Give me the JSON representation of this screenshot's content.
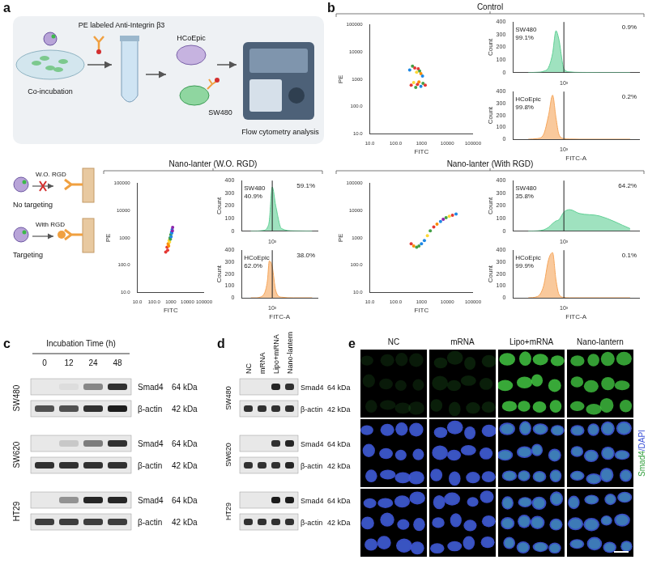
{
  "figure": {
    "panel_labels": [
      "a",
      "b",
      "c",
      "d",
      "e"
    ],
    "panel_a": {
      "steps": [
        "Co-incubation",
        "PE labeled Anti-Integrin β3",
        "HCoEpic",
        "SW480",
        "Flow cytometry analysis"
      ],
      "conditions": [
        {
          "title": "W.O. RGD",
          "result": "No targeting"
        },
        {
          "title": "With RGD",
          "result": "Targeting"
        }
      ]
    },
    "panel_b": {
      "groups": [
        "Control",
        "Nano-lanter (W.O. RGD)",
        "Nano-lanter (With RGD)"
      ]
    },
    "panel_c": {
      "title": "Incubation Time (h)",
      "lanes": [
        "0",
        "12",
        "24",
        "48"
      ],
      "rows": [
        {
          "cell": "SW480",
          "bands": [
            {
              "protein": "Smad4",
              "size": "64 kDa",
              "intensity": [
                0,
                0.05,
                0.45,
                0.85
              ]
            },
            {
              "protein": "β-actin",
              "size": "42 kDa",
              "intensity": [
                0.7,
                0.7,
                0.85,
                0.95
              ]
            }
          ]
        },
        {
          "cell": "SW620",
          "bands": [
            {
              "protein": "Smad4",
              "size": "64 kDa",
              "intensity": [
                0,
                0.15,
                0.5,
                0.85
              ]
            },
            {
              "protein": "β-actin",
              "size": "42 kDa",
              "intensity": [
                0.85,
                0.85,
                0.85,
                0.85
              ]
            }
          ]
        },
        {
          "cell": "HT29",
          "bands": [
            {
              "protein": "Smad4",
              "size": "64 kDa",
              "intensity": [
                0,
                0.4,
                0.9,
                0.9
              ]
            },
            {
              "protein": "β-actin",
              "size": "42 kDa",
              "intensity": [
                0.8,
                0.8,
                0.8,
                0.8
              ]
            }
          ]
        }
      ]
    },
    "panel_d": {
      "lanes": [
        "NC",
        "mRNA",
        "Lipo+mRNA",
        "Nano-lantern"
      ],
      "rows": [
        {
          "cell": "SW480",
          "bands": [
            {
              "protein": "Smad4",
              "size": "64 kDa",
              "intensity": [
                0,
                0,
                0.9,
                0.85
              ]
            },
            {
              "protein": "β-actin",
              "size": "42 kDa",
              "intensity": [
                0.85,
                0.85,
                0.85,
                0.85
              ]
            }
          ]
        },
        {
          "cell": "SW620",
          "bands": [
            {
              "protein": "Smad4",
              "size": "64 kDa",
              "intensity": [
                0,
                0,
                0.85,
                0.9
              ]
            },
            {
              "protein": "β-actin",
              "size": "42 kDa",
              "intensity": [
                0.85,
                0.85,
                0.85,
                0.9
              ]
            }
          ]
        },
        {
          "cell": "HT29",
          "bands": [
            {
              "protein": "Smad4",
              "size": "64 kDa",
              "intensity": [
                0,
                0,
                0.95,
                0.95
              ]
            },
            {
              "protein": "β-actin",
              "size": "42 kDa",
              "intensity": [
                0.85,
                0.85,
                0.85,
                0.85
              ]
            }
          ]
        }
      ]
    },
    "panel_e": {
      "columns": [
        "NC",
        "mRNA",
        "Lipo+mRNA",
        "Nano-lantern"
      ],
      "stain": "Smad4/DAPI",
      "smad4_intensity": [
        0.12,
        0.15,
        0.8,
        0.75
      ]
    }
  },
  "chart_data": [
    {
      "type": "scatter",
      "log": true,
      "x_label": "FITC",
      "y_label": "PE",
      "x": [
        350,
        450,
        550,
        650,
        750,
        850,
        950,
        1100,
        400,
        500,
        600,
        700,
        800,
        950,
        1150,
        1400
      ],
      "values": [
        2200,
        3000,
        2600,
        1800,
        2400,
        2000,
        1600,
        1300,
        600,
        750,
        500,
        650,
        800,
        550,
        700,
        600
      ],
      "colors": [
        "#1e88e5",
        "#43a047",
        "#e53935",
        "#fdd835",
        "#e53935",
        "#43a047",
        "#fb8c00",
        "#1e88e5",
        "#e53935",
        "#fdd835",
        "#43a047",
        "#e53935",
        "#fb8c00",
        "#1e88e5",
        "#43a047",
        "#e53935"
      ],
      "xlim": [
        10,
        100000
      ],
      "ylim": [
        10,
        100000
      ],
      "xticks": [
        {
          "value": 10,
          "label": "10.0"
        },
        {
          "value": 100,
          "label": "100.0"
        },
        1000,
        10000,
        100000
      ],
      "yticks": [
        {
          "value": 10,
          "label": "10.0"
        },
        {
          "value": 100,
          "label": "100.0"
        },
        1000,
        10000,
        100000
      ]
    },
    {
      "type": "line",
      "log": "x",
      "y_label": "Count",
      "gate": 1000,
      "x": [
        200,
        300,
        400,
        500,
        600,
        700,
        800,
        1000,
        1300,
        2000,
        5000,
        20000
      ],
      "series": [
        {
          "name": "SW480",
          "color": "#5fcf94",
          "values": [
            0,
            2,
            10,
            40,
            150,
            330,
            260,
            30,
            5,
            1,
            0,
            0
          ]
        }
      ],
      "annotations": [
        "99.1%",
        "0.9%"
      ],
      "xlim": [
        100,
        30000
      ],
      "ylim": [
        0,
        400
      ],
      "xticks": [
        {
          "value": 1000,
          "label": "10³"
        }
      ],
      "yticks": [
        0,
        100,
        200,
        300,
        400
      ]
    },
    {
      "type": "line",
      "log": "x",
      "y_label": "Count",
      "x_label": "FITC-A",
      "gate": 1000,
      "x": [
        200,
        300,
        400,
        500,
        600,
        700,
        800,
        1000,
        1300,
        2000,
        5000,
        20000
      ],
      "series": [
        {
          "name": "HCoEpic",
          "color": "#f5a55a",
          "values": [
            0,
            5,
            40,
            200,
            370,
            180,
            40,
            5,
            1,
            0,
            0,
            0
          ]
        }
      ],
      "annotations": [
        "99.8%",
        "0.2%"
      ],
      "xlim": [
        100,
        30000
      ],
      "ylim": [
        0,
        400
      ],
      "xticks": [
        {
          "value": 1000,
          "label": "10³"
        }
      ],
      "yticks": [
        0,
        100,
        200,
        300,
        400
      ]
    },
    {
      "type": "scatter",
      "log": true,
      "x_label": "FITC",
      "y_label": "PE",
      "x": [
        500,
        600,
        700,
        800,
        900,
        1000,
        1100,
        1200,
        1300,
        650,
        750,
        850,
        950,
        1050,
        1150,
        1250
      ],
      "values": [
        300,
        450,
        600,
        800,
        1000,
        1300,
        1600,
        2000,
        2400,
        350,
        500,
        700,
        900,
        1100,
        1500,
        1800
      ],
      "colors": [
        "#e53935",
        "#e53935",
        "#fb8c00",
        "#fdd835",
        "#43a047",
        "#43a047",
        "#1e88e5",
        "#1e88e5",
        "#8e24aa",
        "#e53935",
        "#fb8c00",
        "#fdd835",
        "#43a047",
        "#1e88e5",
        "#1e88e5",
        "#8e24aa"
      ],
      "xlim": [
        10,
        100000
      ],
      "ylim": [
        10,
        100000
      ],
      "xticks": [
        {
          "value": 10,
          "label": "10.0"
        },
        {
          "value": 100,
          "label": "100.0"
        },
        1000,
        10000,
        100000
      ],
      "yticks": [
        {
          "value": 10,
          "label": "10.0"
        },
        {
          "value": 100,
          "label": "100.0"
        },
        1000,
        10000,
        100000
      ]
    },
    {
      "type": "line",
      "log": "x",
      "y_label": "Count",
      "gate": 1000,
      "x": [
        200,
        300,
        400,
        500,
        600,
        700,
        800,
        1000,
        1300,
        2000,
        5000,
        20000
      ],
      "series": [
        {
          "name": "SW480",
          "color": "#5fcf94",
          "values": [
            0,
            0,
            2,
            5,
            10,
            30,
            80,
            350,
            200,
            20,
            2,
            0
          ]
        }
      ],
      "annotations": [
        "40.9%",
        "59.1%"
      ],
      "xlim": [
        100,
        30000
      ],
      "ylim": [
        0,
        400
      ],
      "xticks": [
        {
          "value": 1000,
          "label": "10³"
        }
      ],
      "yticks": [
        0,
        100,
        200,
        300,
        400
      ]
    },
    {
      "type": "line",
      "log": "x",
      "y_label": "Count",
      "x_label": "FITC-A",
      "gate": 1000,
      "x": [
        200,
        300,
        400,
        500,
        600,
        700,
        800,
        1000,
        1300,
        2000,
        5000,
        20000
      ],
      "series": [
        {
          "name": "HCoEpic",
          "color": "#f5a55a",
          "values": [
            0,
            0,
            5,
            20,
            60,
            150,
            310,
            260,
            60,
            5,
            0,
            0
          ]
        }
      ],
      "annotations": [
        "62.0%",
        "38.0%"
      ],
      "xlim": [
        100,
        30000
      ],
      "ylim": [
        0,
        400
      ],
      "xticks": [
        {
          "value": 1000,
          "label": "10³"
        }
      ],
      "yticks": [
        0,
        100,
        200,
        300,
        400
      ]
    },
    {
      "type": "scatter",
      "log": true,
      "x_label": "FITC",
      "y_label": "PE",
      "x": [
        400,
        500,
        650,
        800,
        1000,
        1300,
        1700,
        2200,
        3000,
        4000,
        5500,
        7000,
        9000,
        12000,
        16000,
        22000
      ],
      "values": [
        600,
        500,
        450,
        500,
        600,
        800,
        1200,
        1800,
        2500,
        3200,
        4000,
        4800,
        5500,
        6200,
        6800,
        7500
      ],
      "colors": [
        "#e53935",
        "#fb8c00",
        "#43a047",
        "#43a047",
        "#1e88e5",
        "#1e88e5",
        "#fdd835",
        "#43a047",
        "#e53935",
        "#fb8c00",
        "#1e88e5",
        "#8e24aa",
        "#43a047",
        "#fdd835",
        "#e53935",
        "#1e88e5"
      ],
      "xlim": [
        10,
        100000
      ],
      "ylim": [
        10,
        100000
      ],
      "xticks": [
        {
          "value": 10,
          "label": "10.0"
        },
        {
          "value": 100,
          "label": "100.0"
        },
        1000,
        10000,
        100000
      ],
      "yticks": [
        {
          "value": 10,
          "label": "10.0"
        },
        {
          "value": 100,
          "label": "100.0"
        },
        1000,
        10000,
        100000
      ]
    },
    {
      "type": "line",
      "log": "x",
      "y_label": "Count",
      "gate": 1000,
      "x": [
        200,
        300,
        400,
        500,
        600,
        700,
        800,
        1000,
        1300,
        2000,
        5000,
        20000
      ],
      "series": [
        {
          "name": "SW480",
          "color": "#5fcf94",
          "values": [
            0,
            2,
            10,
            30,
            60,
            80,
            90,
            150,
            170,
            140,
            120,
            20
          ]
        }
      ],
      "annotations": [
        "35.8%",
        "64.2%"
      ],
      "xlim": [
        100,
        30000
      ],
      "ylim": [
        0,
        400
      ],
      "xticks": [
        {
          "value": 1000,
          "label": "10³"
        }
      ],
      "yticks": [
        0,
        100,
        200,
        300,
        400
      ]
    },
    {
      "type": "line",
      "log": "x",
      "y_label": "Count",
      "x_label": "FITC-A",
      "gate": 1000,
      "x": [
        200,
        300,
        400,
        500,
        600,
        700,
        800,
        1000,
        1300,
        2000,
        5000,
        20000
      ],
      "series": [
        {
          "name": "HCoEpic",
          "color": "#f5a55a",
          "values": [
            0,
            10,
            100,
            320,
            380,
            150,
            30,
            3,
            0,
            0,
            0,
            0
          ]
        }
      ],
      "annotations": [
        "99.9%",
        "0.1%"
      ],
      "xlim": [
        100,
        30000
      ],
      "ylim": [
        0,
        400
      ],
      "xticks": [
        {
          "value": 1000,
          "label": "10³"
        }
      ],
      "yticks": [
        0,
        100,
        200,
        300,
        400
      ]
    }
  ]
}
